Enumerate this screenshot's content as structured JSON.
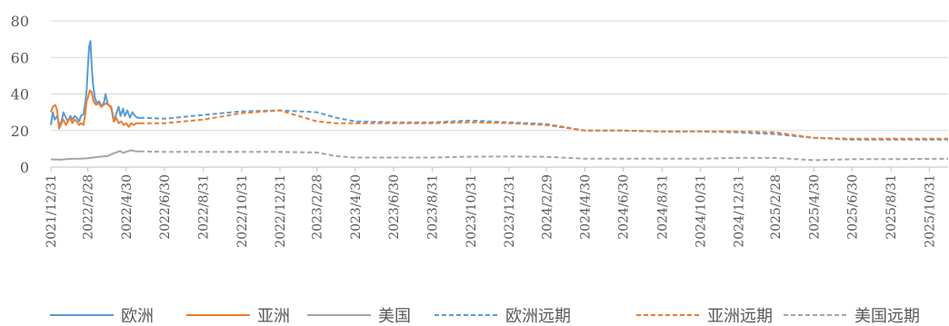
{
  "chart_data": {
    "type": "line",
    "title": "",
    "xlabel": "",
    "ylabel": "",
    "ylim": [
      0,
      80
    ],
    "yticks": [
      0,
      20,
      40,
      60,
      80
    ],
    "grid": "horizontal",
    "legend_position": "bottom",
    "x_range": [
      "2021-12-31",
      "2025-11-30"
    ],
    "x_ticks": [
      "2021/12/31",
      "2022/2/28",
      "2022/4/30",
      "2022/6/30",
      "2022/8/31",
      "2022/10/31",
      "2022/12/31",
      "2023/2/28",
      "2023/4/30",
      "2023/6/30",
      "2023/8/31",
      "2023/10/31",
      "2023/12/31",
      "2024/2/29",
      "2024/4/30",
      "2024/6/30",
      "2024/8/31",
      "2024/10/31",
      "2024/12/31",
      "2025/2/28",
      "2025/4/30",
      "2025/6/30",
      "2025/8/31",
      "2025/10/31"
    ],
    "series": [
      {
        "name": "欧洲",
        "color": "#5B9BD5",
        "dash": "solid",
        "points": [
          [
            "2021-12-31",
            23
          ],
          [
            "2022-01-03",
            30
          ],
          [
            "2022-01-06",
            26
          ],
          [
            "2022-01-10",
            28
          ],
          [
            "2022-01-13",
            23
          ],
          [
            "2022-01-17",
            25
          ],
          [
            "2022-01-20",
            30
          ],
          [
            "2022-01-24",
            27
          ],
          [
            "2022-01-27",
            25
          ],
          [
            "2022-01-31",
            28
          ],
          [
            "2022-02-03",
            26
          ],
          [
            "2022-02-07",
            28
          ],
          [
            "2022-02-10",
            27
          ],
          [
            "2022-02-14",
            25
          ],
          [
            "2022-02-17",
            28
          ],
          [
            "2022-02-21",
            29
          ],
          [
            "2022-02-24",
            36
          ],
          [
            "2022-02-26",
            42
          ],
          [
            "2022-02-28",
            55
          ],
          [
            "2022-03-02",
            66
          ],
          [
            "2022-03-04",
            69
          ],
          [
            "2022-03-06",
            55
          ],
          [
            "2022-03-08",
            46
          ],
          [
            "2022-03-11",
            38
          ],
          [
            "2022-03-14",
            35
          ],
          [
            "2022-03-18",
            36
          ],
          [
            "2022-03-22",
            33
          ],
          [
            "2022-03-26",
            36
          ],
          [
            "2022-03-28",
            40
          ],
          [
            "2022-04-01",
            34
          ],
          [
            "2022-04-05",
            33
          ],
          [
            "2022-04-08",
            30
          ],
          [
            "2022-04-11",
            25
          ],
          [
            "2022-04-14",
            29
          ],
          [
            "2022-04-18",
            33
          ],
          [
            "2022-04-21",
            28
          ],
          [
            "2022-04-25",
            32
          ],
          [
            "2022-04-28",
            28
          ],
          [
            "2022-05-02",
            31
          ],
          [
            "2022-05-06",
            27
          ],
          [
            "2022-05-10",
            30
          ],
          [
            "2022-05-14",
            28
          ],
          [
            "2022-05-18",
            27
          ],
          [
            "2022-05-22",
            27
          ]
        ]
      },
      {
        "name": "亚洲",
        "color": "#ED7D31",
        "dash": "solid",
        "points": [
          [
            "2021-12-31",
            30
          ],
          [
            "2022-01-03",
            33
          ],
          [
            "2022-01-07",
            34
          ],
          [
            "2022-01-10",
            31
          ],
          [
            "2022-01-13",
            21
          ],
          [
            "2022-01-17",
            24
          ],
          [
            "2022-01-20",
            26
          ],
          [
            "2022-01-24",
            23
          ],
          [
            "2022-01-27",
            25
          ],
          [
            "2022-01-31",
            27
          ],
          [
            "2022-02-03",
            24
          ],
          [
            "2022-02-07",
            26
          ],
          [
            "2022-02-10",
            25
          ],
          [
            "2022-02-14",
            23
          ],
          [
            "2022-02-17",
            24
          ],
          [
            "2022-02-21",
            23
          ],
          [
            "2022-02-24",
            30
          ],
          [
            "2022-02-26",
            36
          ],
          [
            "2022-02-28",
            38
          ],
          [
            "2022-03-03",
            42
          ],
          [
            "2022-03-06",
            41
          ],
          [
            "2022-03-09",
            36
          ],
          [
            "2022-03-13",
            34
          ],
          [
            "2022-03-17",
            35
          ],
          [
            "2022-03-21",
            33
          ],
          [
            "2022-03-25",
            34
          ],
          [
            "2022-03-29",
            35
          ],
          [
            "2022-04-02",
            34
          ],
          [
            "2022-04-06",
            33
          ],
          [
            "2022-04-10",
            25
          ],
          [
            "2022-04-14",
            27
          ],
          [
            "2022-04-18",
            24
          ],
          [
            "2022-04-22",
            25
          ],
          [
            "2022-04-26",
            23
          ],
          [
            "2022-04-30",
            24
          ],
          [
            "2022-05-04",
            22
          ],
          [
            "2022-05-08",
            24
          ],
          [
            "2022-05-12",
            23
          ],
          [
            "2022-05-16",
            24
          ],
          [
            "2022-05-22",
            24
          ]
        ]
      },
      {
        "name": "美国",
        "color": "#A5A5A5",
        "dash": "solid",
        "points": [
          [
            "2021-12-31",
            4.2
          ],
          [
            "2022-01-15",
            4.0
          ],
          [
            "2022-01-31",
            4.5
          ],
          [
            "2022-02-15",
            4.6
          ],
          [
            "2022-02-28",
            4.8
          ],
          [
            "2022-03-15",
            5.5
          ],
          [
            "2022-03-31",
            6.0
          ],
          [
            "2022-04-10",
            7.5
          ],
          [
            "2022-04-20",
            8.8
          ],
          [
            "2022-04-25",
            7.8
          ],
          [
            "2022-05-01",
            8.5
          ],
          [
            "2022-05-08",
            9.2
          ],
          [
            "2022-05-15",
            8.6
          ],
          [
            "2022-05-22",
            8.6
          ]
        ]
      },
      {
        "name": "欧洲远期",
        "color": "#5B9BD5",
        "dash": "dashed",
        "points": [
          [
            "2022-05-22",
            27
          ],
          [
            "2022-06-30",
            26.5
          ],
          [
            "2022-08-31",
            28.5
          ],
          [
            "2022-10-31",
            30.5
          ],
          [
            "2022-12-31",
            31
          ],
          [
            "2023-02-28",
            30
          ],
          [
            "2023-03-31",
            27
          ],
          [
            "2023-04-30",
            25
          ],
          [
            "2023-06-30",
            24.5
          ],
          [
            "2023-08-31",
            24.5
          ],
          [
            "2023-10-31",
            25.5
          ],
          [
            "2023-12-31",
            24.5
          ],
          [
            "2024-02-29",
            23.5
          ],
          [
            "2024-04-30",
            20
          ],
          [
            "2024-06-30",
            20
          ],
          [
            "2024-08-31",
            19.5
          ],
          [
            "2024-10-31",
            19.5
          ],
          [
            "2024-12-31",
            19
          ],
          [
            "2025-02-28",
            18
          ],
          [
            "2025-04-30",
            16
          ],
          [
            "2025-06-30",
            15
          ],
          [
            "2025-08-31",
            15
          ],
          [
            "2025-10-31",
            15
          ],
          [
            "2025-11-30",
            15
          ]
        ]
      },
      {
        "name": "亚洲远期",
        "color": "#ED7D31",
        "dash": "dashed",
        "points": [
          [
            "2022-05-22",
            24
          ],
          [
            "2022-06-30",
            24
          ],
          [
            "2022-08-31",
            26
          ],
          [
            "2022-10-31",
            29.5
          ],
          [
            "2022-12-31",
            31
          ],
          [
            "2023-02-28",
            25
          ],
          [
            "2023-03-31",
            24
          ],
          [
            "2023-04-30",
            24
          ],
          [
            "2023-06-30",
            24
          ],
          [
            "2023-08-31",
            24
          ],
          [
            "2023-10-31",
            24.5
          ],
          [
            "2023-12-31",
            24
          ],
          [
            "2024-02-29",
            23
          ],
          [
            "2024-04-30",
            20
          ],
          [
            "2024-06-30",
            20
          ],
          [
            "2024-08-31",
            19.5
          ],
          [
            "2024-10-31",
            19.5
          ],
          [
            "2024-12-31",
            19.5
          ],
          [
            "2025-02-28",
            19
          ],
          [
            "2025-04-30",
            16
          ],
          [
            "2025-06-30",
            15.5
          ],
          [
            "2025-08-31",
            15.5
          ],
          [
            "2025-10-31",
            15.5
          ],
          [
            "2025-11-30",
            15.5
          ]
        ]
      },
      {
        "name": "美国远期",
        "color": "#A5A5A5",
        "dash": "dashed",
        "points": [
          [
            "2022-05-22",
            8.6
          ],
          [
            "2022-06-30",
            8.3
          ],
          [
            "2022-08-31",
            8.3
          ],
          [
            "2022-10-31",
            8.3
          ],
          [
            "2022-12-31",
            8.3
          ],
          [
            "2023-02-28",
            8.0
          ],
          [
            "2023-03-31",
            6.0
          ],
          [
            "2023-04-30",
            5.2
          ],
          [
            "2023-06-30",
            5.2
          ],
          [
            "2023-08-31",
            5.2
          ],
          [
            "2023-10-31",
            5.7
          ],
          [
            "2023-12-31",
            5.8
          ],
          [
            "2024-02-29",
            5.6
          ],
          [
            "2024-04-30",
            4.6
          ],
          [
            "2024-06-30",
            4.6
          ],
          [
            "2024-08-31",
            4.6
          ],
          [
            "2024-10-31",
            4.6
          ],
          [
            "2024-12-31",
            5.0
          ],
          [
            "2025-02-28",
            5.0
          ],
          [
            "2025-04-30",
            3.8
          ],
          [
            "2025-06-30",
            4.3
          ],
          [
            "2025-08-31",
            4.3
          ],
          [
            "2025-10-31",
            4.5
          ],
          [
            "2025-11-30",
            4.5
          ]
        ]
      }
    ]
  }
}
